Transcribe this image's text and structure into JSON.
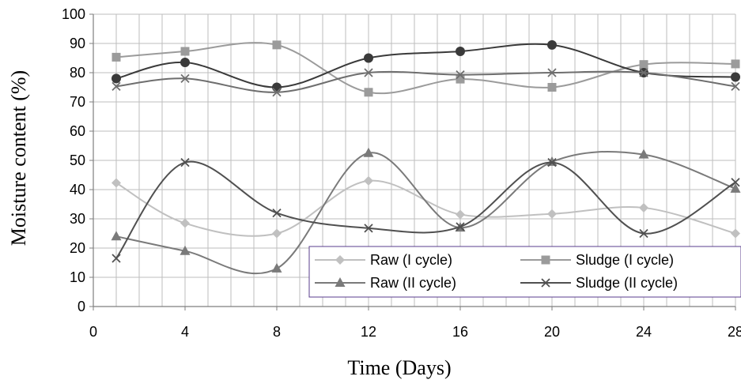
{
  "chart_data": {
    "type": "line",
    "title": "",
    "xlabel": "Time (Days)",
    "ylabel": "Moisture  content (%)",
    "xlim": [
      0,
      28
    ],
    "ylim": [
      0,
      100
    ],
    "x_ticks": [
      0,
      4,
      8,
      12,
      16,
      20,
      24,
      28
    ],
    "y_ticks": [
      0,
      10,
      20,
      30,
      40,
      50,
      60,
      70,
      80,
      90,
      100
    ],
    "grid": true,
    "legend_position": "bottom-right",
    "x": [
      1,
      4,
      8,
      12,
      16,
      20,
      24,
      28
    ],
    "series": [
      {
        "name": "Raw (I cycle)",
        "marker": "diamond",
        "color": "#c0c0c0",
        "values": [
          42.3,
          28.5,
          25.0,
          43.0,
          31.5,
          31.7,
          33.8,
          25.0
        ]
      },
      {
        "name": "Sludge (I cycle)",
        "marker": "square",
        "color": "#9b9b9b",
        "values": [
          85.3,
          87.3,
          89.5,
          73.3,
          77.8,
          75.0,
          82.8,
          83.0
        ]
      },
      {
        "name": "Raw (II cycle)",
        "marker": "triangle",
        "color": "#7a7a7a",
        "values": [
          24.0,
          19.0,
          13.0,
          52.5,
          27.0,
          49.5,
          52.0,
          40.3
        ]
      },
      {
        "name": "Sludge (II cycle)",
        "marker": "x",
        "color": "#505050",
        "values": [
          16.5,
          49.3,
          32.0,
          26.8,
          27.3,
          49.3,
          25.0,
          42.5
        ]
      },
      {
        "name": "",
        "marker": "circle",
        "color": "#3a3a3a",
        "values": [
          78.0,
          83.5,
          75.0,
          85.0,
          87.3,
          89.5,
          80.0,
          78.5
        ]
      },
      {
        "name": "",
        "marker": "x",
        "color": "#6e6e6e",
        "values": [
          75.3,
          78.0,
          73.3,
          80.0,
          79.3,
          80.0,
          80.0,
          75.3
        ]
      }
    ]
  }
}
